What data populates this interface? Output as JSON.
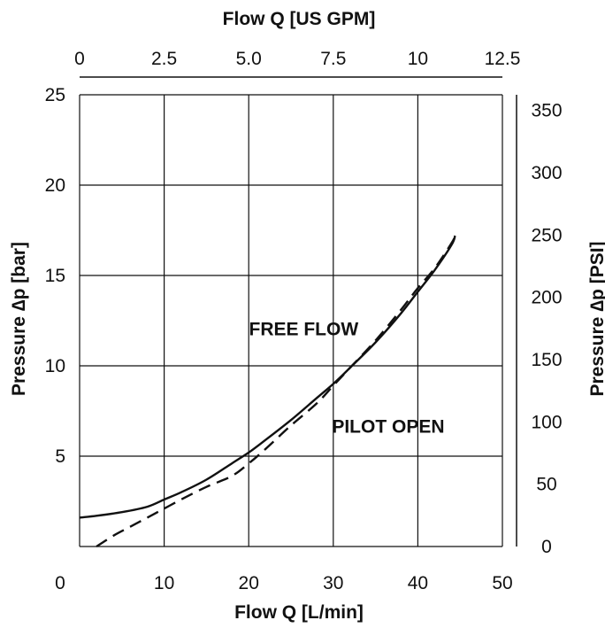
{
  "chart_data": {
    "type": "line",
    "title": "",
    "xlabel": "Flow Q [L/min]",
    "ylabel": "Pressure ∆p [bar]",
    "x2label": "Flow Q [US GPM]",
    "y2label": "Pressure ∆p [PSI]",
    "xlim": [
      0,
      50
    ],
    "ylim": [
      0,
      25
    ],
    "x2lim": [
      0,
      12.5
    ],
    "y2lim": [
      0,
      362.6
    ],
    "xticks": [
      "0",
      "10",
      "20",
      "30",
      "40",
      "50"
    ],
    "yticks": [
      "5",
      "10",
      "15",
      "20",
      "25"
    ],
    "x2ticks": [
      "0",
      "2.5",
      "5.0",
      "7.5",
      "10",
      "12.5"
    ],
    "y2ticks": [
      "0",
      "50",
      "100",
      "150",
      "200",
      "250",
      "300",
      "350"
    ],
    "grid": true,
    "legend": "none",
    "series": [
      {
        "name": "FREE FLOW",
        "style": "solid",
        "color": "#111111",
        "x": [
          0,
          2,
          5,
          8,
          10,
          12,
          15,
          18,
          20,
          22,
          25,
          28,
          30,
          32,
          35,
          38,
          40,
          42,
          44,
          44.4
        ],
        "y": [
          1.6,
          1.7,
          1.9,
          2.2,
          2.6,
          3.0,
          3.7,
          4.6,
          5.2,
          5.9,
          7.0,
          8.2,
          9.0,
          9.9,
          11.3,
          12.9,
          14.1,
          15.3,
          16.7,
          17.2
        ]
      },
      {
        "name": "PILOT OPEN",
        "style": "dashed",
        "color": "#111111",
        "x": [
          2,
          4,
          6,
          8,
          10,
          12,
          15,
          18,
          20,
          22,
          25,
          28,
          30,
          32,
          35,
          38,
          40,
          42,
          44,
          44.4
        ],
        "y": [
          0,
          0.6,
          1.1,
          1.6,
          2.1,
          2.6,
          3.3,
          3.9,
          4.6,
          5.4,
          6.7,
          7.9,
          8.9,
          9.9,
          11.4,
          13.1,
          14.3,
          15.4,
          16.8,
          17.2
        ]
      }
    ],
    "annotations": [
      {
        "text": "FREE FLOW",
        "x": 26.5,
        "y": 11.7
      },
      {
        "text": "PILOT OPEN",
        "x": 36.5,
        "y": 6.3
      }
    ]
  }
}
